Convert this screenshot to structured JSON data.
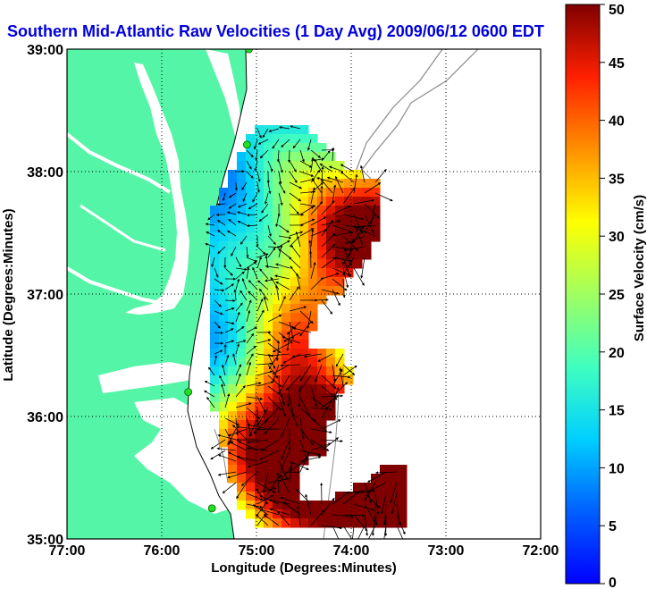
{
  "title": "Southern Mid-Atlantic Raw Velocities (1 Day Avg) 2009/06/12 0600 EDT",
  "colors": {
    "title": "#0000dd",
    "land": "#55f5a8",
    "station": "#22dd22",
    "contour": "#8a8a8a"
  },
  "map": {
    "xlabel": "Longitude (Degrees:Minutes)",
    "ylabel": "Latitude (Degrees:Minutes)",
    "x_ticks": [
      "77:00",
      "76:00",
      "75:00",
      "74:00",
      "73:00",
      "72:00"
    ],
    "y_ticks": [
      "39:00",
      "38:00",
      "37:00",
      "36:00",
      "35:00"
    ],
    "x_range": [
      -77,
      -72
    ],
    "y_range": [
      35,
      39
    ],
    "grid": "dotted",
    "stations": [
      {
        "lon": -75.08,
        "lat": 39.0
      },
      {
        "lon": -75.1,
        "lat": 38.22
      },
      {
        "lon": -75.72,
        "lat": 36.2
      },
      {
        "lon": -75.47,
        "lat": 35.25
      }
    ]
  },
  "colorbar": {
    "label": "Surface Velocity (cm/s)",
    "ticks": [
      "0",
      "5",
      "10",
      "15",
      "20",
      "25",
      "30",
      "35",
      "40",
      "45",
      "50"
    ],
    "range": [
      0,
      50
    ],
    "colormap": "jet"
  }
}
